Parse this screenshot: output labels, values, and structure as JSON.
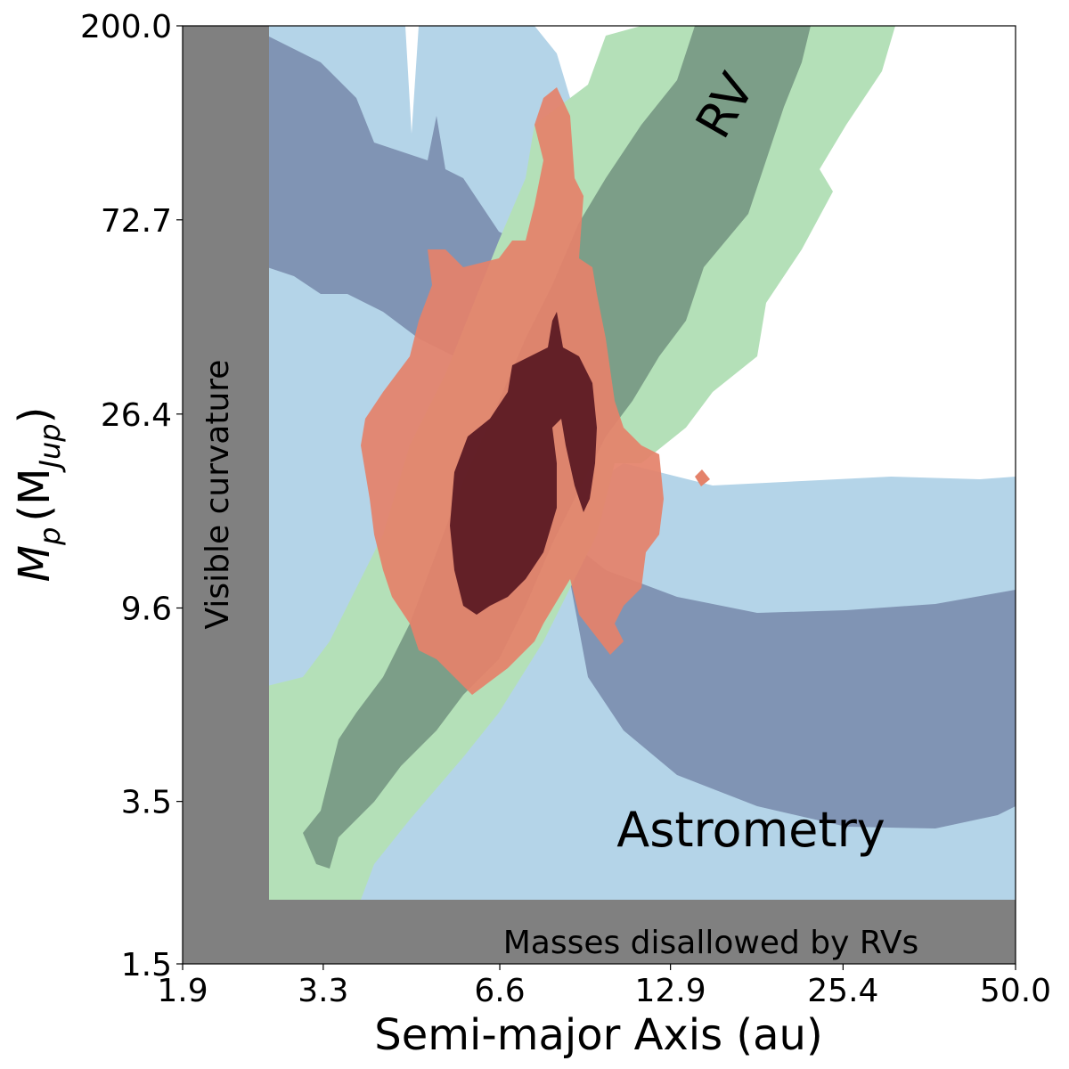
{
  "chart_data": {
    "type": "contour",
    "xlabel": "Semi-major Axis (au)",
    "ylabel_main": "M",
    "ylabel_sub": "p",
    "ylabel_unit_open": "(M",
    "ylabel_unit_sub": "Jup",
    "ylabel_unit_close": ")",
    "x_scale": "log",
    "y_scale": "log",
    "xlim": [
      1.9,
      50.0
    ],
    "ylim": [
      1.5,
      200.0
    ],
    "x_ticks": [
      "1.9",
      "3.3",
      "6.6",
      "12.9",
      "25.4",
      "50.0"
    ],
    "x_tick_values": [
      1.9,
      3.3,
      6.6,
      12.9,
      25.4,
      50.0
    ],
    "y_ticks": [
      "200.0",
      "72.7",
      "26.4",
      "9.6",
      "3.5",
      "1.5"
    ],
    "y_tick_values": [
      200.0,
      72.7,
      26.4,
      9.6,
      3.5,
      1.5
    ],
    "grid": false,
    "annotations": {
      "rv": "RV",
      "astrometry": "Astrometry",
      "visible_curvature": "Visible curvature",
      "masses_disallowed": "Masses disallowed by RVs"
    },
    "excluded_regions": {
      "visible_curvature_a_max": 2.35,
      "rv_mass_min": 2.25
    },
    "series": [
      {
        "label": "astrometry-2sigma",
        "color": "#b4d4e8"
      },
      {
        "label": "astrometry-1sigma",
        "color": "#8094b4"
      },
      {
        "label": "rv-2sigma",
        "color": "#b4e0b8"
      },
      {
        "label": "rv-1sigma",
        "color": "#7c9e88"
      },
      {
        "label": "joint-2sigma",
        "color": "#e4826a"
      },
      {
        "label": "joint-1sigma",
        "color": "#5c1a24"
      }
    ],
    "exclusion_color": "#808080"
  }
}
